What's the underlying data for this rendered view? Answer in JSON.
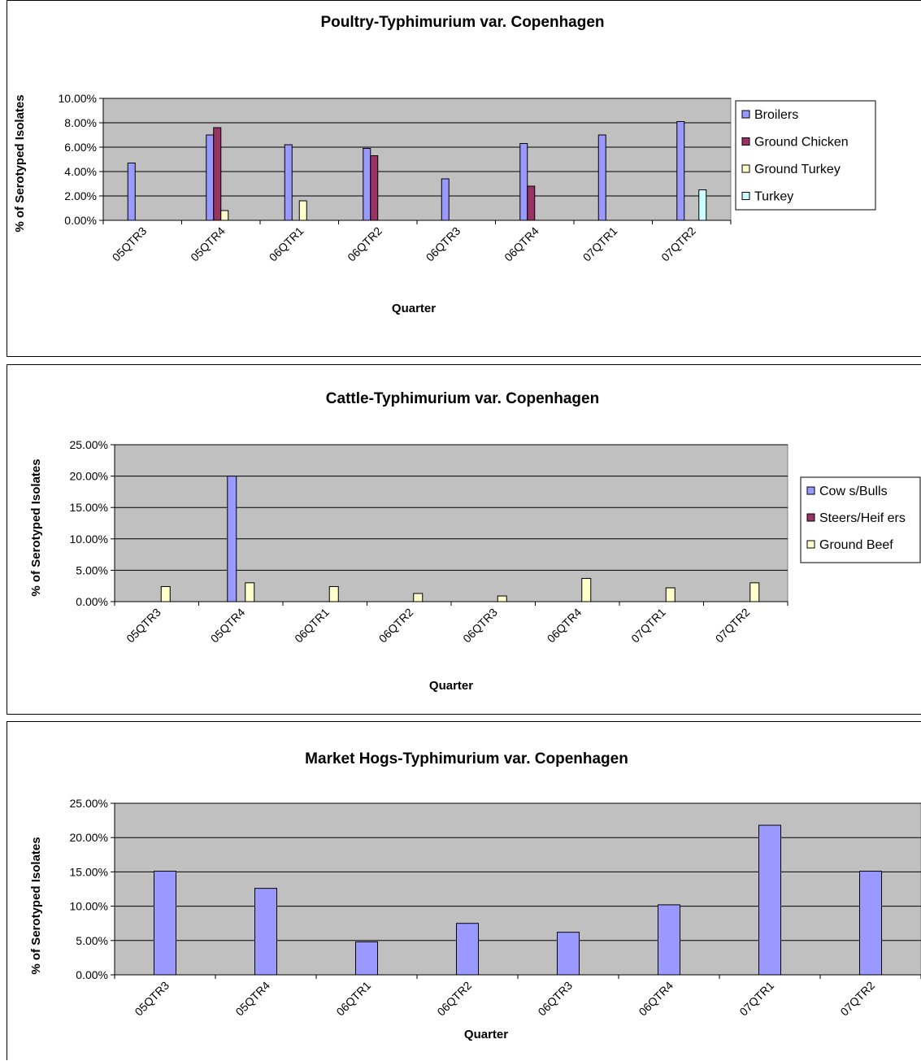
{
  "colors": {
    "plot_bg": "#c0c0c0",
    "broilers": "#9999ff",
    "ground_chicken": "#993366",
    "ground_turkey": "#ffffcc",
    "turkey": "#ccffff"
  },
  "chart_data": [
    {
      "type": "bar",
      "title": "Poultry-Typhimurium var. Copenhagen",
      "xlabel": "Quarter",
      "ylabel": "% of Serotyped Isolates",
      "ylim": [
        0,
        0.1
      ],
      "yticks": [
        "0.00%",
        "2.00%",
        "4.00%",
        "6.00%",
        "8.00%",
        "10.00%"
      ],
      "categories": [
        "05QTR3",
        "05QTR4",
        "06QTR1",
        "06QTR2",
        "06QTR3",
        "06QTR4",
        "07QTR1",
        "07QTR2"
      ],
      "legend_position": "right",
      "grid": true,
      "series": [
        {
          "name": "Broilers",
          "color": "#9999ff",
          "values": [
            0.047,
            0.07,
            0.062,
            0.059,
            0.034,
            0.063,
            0.07,
            0.081
          ]
        },
        {
          "name": "Ground Chicken",
          "color": "#993366",
          "values": [
            null,
            0.076,
            null,
            0.053,
            null,
            0.028,
            null,
            null
          ]
        },
        {
          "name": "Ground Turkey",
          "color": "#ffffcc",
          "values": [
            null,
            0.008,
            0.016,
            null,
            null,
            null,
            null,
            null
          ]
        },
        {
          "name": "Turkey",
          "color": "#ccffff",
          "values": [
            null,
            null,
            null,
            null,
            null,
            null,
            null,
            0.025
          ]
        }
      ]
    },
    {
      "type": "bar",
      "title": "Cattle-Typhimurium var. Copenhagen",
      "xlabel": "Quarter",
      "ylabel": "% of Serotyped Isolates",
      "ylim": [
        0,
        0.25
      ],
      "yticks": [
        "0.00%",
        "5.00%",
        "10.00%",
        "15.00%",
        "20.00%",
        "25.00%"
      ],
      "categories": [
        "05QTR3",
        "05QTR4",
        "06QTR1",
        "06QTR2",
        "06QTR3",
        "06QTR4",
        "07QTR1",
        "07QTR2"
      ],
      "legend_position": "right",
      "grid": true,
      "series": [
        {
          "name": "Cow s/Bulls",
          "color": "#9999ff",
          "values": [
            null,
            0.2,
            null,
            null,
            null,
            null,
            null,
            null
          ]
        },
        {
          "name": "Steers/Heif ers",
          "color": "#993366",
          "values": [
            null,
            null,
            null,
            null,
            null,
            null,
            null,
            null
          ]
        },
        {
          "name": "Ground Beef",
          "color": "#ffffcc",
          "values": [
            0.024,
            0.03,
            0.024,
            0.013,
            0.009,
            0.037,
            0.022,
            0.03
          ]
        }
      ]
    },
    {
      "type": "bar",
      "title": "Market Hogs-Typhimurium var. Copenhagen",
      "xlabel": "Quarter",
      "ylabel": "% of Serotyped Isolates",
      "ylim": [
        0,
        0.25
      ],
      "yticks": [
        "0.00%",
        "5.00%",
        "10.00%",
        "15.00%",
        "20.00%",
        "25.00%"
      ],
      "categories": [
        "05QTR3",
        "05QTR4",
        "06QTR1",
        "06QTR2",
        "06QTR3",
        "06QTR4",
        "07QTR1",
        "07QTR2"
      ],
      "legend_position": "none",
      "grid": true,
      "series": [
        {
          "color": "#9999ff",
          "values": [
            0.151,
            0.126,
            0.048,
            0.075,
            0.062,
            0.102,
            0.218,
            0.151
          ]
        }
      ]
    }
  ]
}
